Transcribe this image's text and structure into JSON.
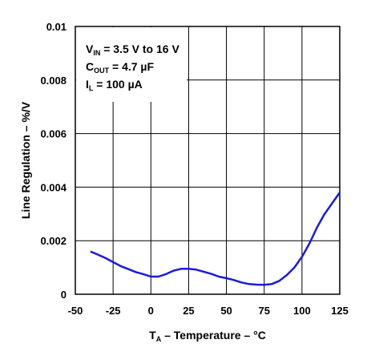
{
  "chart_data": {
    "type": "line",
    "xlabel": {
      "main": "T",
      "sub": "A",
      "rest": " – Temperature – °C"
    },
    "ylabel": "Line Regulation – %/V",
    "xlim": [
      -50,
      125
    ],
    "ylim": [
      0,
      0.01
    ],
    "xticks": [
      -50,
      -25,
      0,
      25,
      50,
      75,
      100,
      125
    ],
    "xtick_labels": [
      "-50",
      "-25",
      "0",
      "25",
      "50",
      "75",
      "100",
      "125"
    ],
    "yticks": [
      0,
      0.002,
      0.004,
      0.006,
      0.008,
      0.01
    ],
    "ytick_labels": [
      "0",
      "0.002",
      "0.004",
      "0.006",
      "0.008",
      "0.01"
    ],
    "grid": true,
    "series_color": "#1a1adf",
    "annotations": [
      {
        "main": "V",
        "sub": "IN",
        "rest": " = 3.5 V to 16 V"
      },
      {
        "main": "C",
        "sub": "OUT",
        "rest": " = 4.7 µF"
      },
      {
        "main": "I",
        "sub": "L",
        "rest": " = 100 µA"
      }
    ],
    "series": [
      {
        "x": [
          -40,
          -35,
          -30,
          -25,
          -20,
          -15,
          -10,
          -5,
          0,
          5,
          10,
          15,
          20,
          25,
          30,
          35,
          40,
          45,
          50,
          55,
          60,
          65,
          70,
          75,
          80,
          85,
          90,
          95,
          100,
          105,
          110,
          115,
          120,
          125
        ],
        "values": [
          0.0016,
          0.00148,
          0.00135,
          0.0012,
          0.00105,
          0.00094,
          0.00083,
          0.00075,
          0.00066,
          0.00066,
          0.00075,
          0.00088,
          0.00095,
          0.00095,
          0.00092,
          0.00084,
          0.00076,
          0.00066,
          0.0006,
          0.00053,
          0.00044,
          0.00038,
          0.00036,
          0.00035,
          0.00038,
          0.0005,
          0.00072,
          0.001,
          0.0014,
          0.0019,
          0.0025,
          0.003,
          0.0034,
          0.0038
        ]
      }
    ]
  }
}
